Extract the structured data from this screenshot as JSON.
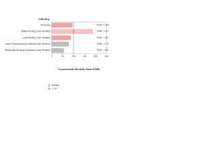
{
  "chart_data": {
    "type": "barh",
    "title": "Industry",
    "xlabel": "Proportionate Mortality Ratio (PMR)",
    "categories": [
      "Advocacy",
      "Skilled Nursing Care Facilities",
      "Local Nursing Care Facilities",
      "Home Performances & National Care Services",
      "Residential Nursing & Assisted Living Facilities"
    ],
    "values": [
      94,
      187,
      87,
      78,
      56
    ],
    "colors": [
      "#f4a0a8",
      "#f8c0c6",
      "#f4a0a8",
      "#bdbdbd",
      "#bdbdbd"
    ],
    "annotations": [
      "PMR = 0.94",
      "PMR = 1.87",
      "PMR = 0.87",
      "PMR = 0.78",
      "PMR = 0.56"
    ],
    "xlim": [
      0,
      250
    ],
    "xticks": [
      0,
      50,
      100,
      150,
      200,
      250
    ],
    "reference_line": 100,
    "legend": [
      {
        "label": "Nursing",
        "color": "#bdbdbd"
      },
      {
        "label": "> 1.0*",
        "color": "#f4a0a8"
      }
    ]
  }
}
